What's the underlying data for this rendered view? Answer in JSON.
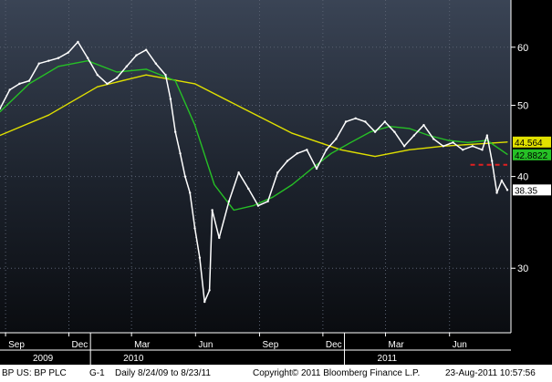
{
  "chart_data": {
    "type": "line",
    "title": "",
    "xlabel": "",
    "ylabel": "",
    "scale": "log",
    "ylim": [
      25,
      68
    ],
    "y_ticks": [
      "30",
      "40",
      "50",
      "60"
    ],
    "y_tick_values": [
      30,
      40,
      50,
      60
    ],
    "x_ticks": [
      "Sep",
      "Dec",
      "Mar",
      "Jun",
      "Sep",
      "Dec",
      "Mar",
      "Jun"
    ],
    "x_tick_dates": [
      "2009-09-01",
      "2009-12-01",
      "2010-03-01",
      "2010-06-01",
      "2010-09-01",
      "2010-12-01",
      "2011-03-01",
      "2011-06-01"
    ],
    "year_labels": [
      "2009",
      "2010",
      "2011"
    ],
    "year_label_dates": [
      "2009-08-24",
      "2010-01-01",
      "2011-01-01"
    ],
    "x_range": [
      "2009-08-24",
      "2011-08-23"
    ],
    "grid": true,
    "series": [
      {
        "color": "#ffffff",
        "x": [
          "2009-08-24",
          "2009-09-07",
          "2009-09-21",
          "2009-10-05",
          "2009-10-19",
          "2009-11-02",
          "2009-11-16",
          "2009-11-30",
          "2009-12-14",
          "2009-12-28",
          "2010-01-11",
          "2010-01-25",
          "2010-02-08",
          "2010-02-22",
          "2010-03-08",
          "2010-03-22",
          "2010-04-05",
          "2010-04-19",
          "2010-04-26",
          "2010-05-03",
          "2010-05-10",
          "2010-05-17",
          "2010-05-24",
          "2010-05-31",
          "2010-06-07",
          "2010-06-14",
          "2010-06-21",
          "2010-06-25",
          "2010-07-05",
          "2010-07-19",
          "2010-08-02",
          "2010-08-16",
          "2010-08-30",
          "2010-09-13",
          "2010-09-27",
          "2010-10-11",
          "2010-10-25",
          "2010-11-08",
          "2010-11-22",
          "2010-12-06",
          "2010-12-20",
          "2011-01-03",
          "2011-01-17",
          "2011-01-31",
          "2011-02-14",
          "2011-02-28",
          "2011-03-14",
          "2011-03-28",
          "2011-04-11",
          "2011-04-25",
          "2011-05-09",
          "2011-05-23",
          "2011-06-06",
          "2011-06-20",
          "2011-07-04",
          "2011-07-18",
          "2011-07-25",
          "2011-08-01",
          "2011-08-08",
          "2011-08-15",
          "2011-08-23"
        ],
        "values": [
          49.5,
          52.5,
          53.5,
          54.0,
          57.0,
          57.5,
          58.0,
          59.0,
          61.0,
          58.0,
          55.0,
          53.5,
          54.5,
          56.5,
          58.5,
          59.5,
          57.0,
          55.0,
          51.0,
          46.0,
          43.0,
          40.0,
          38.0,
          34.0,
          31.0,
          27.0,
          28.0,
          36.0,
          33.0,
          37.0,
          40.5,
          38.5,
          36.5,
          37.0,
          40.5,
          42.0,
          43.0,
          43.5,
          41.0,
          43.5,
          45.0,
          47.5,
          48.0,
          47.5,
          46.0,
          47.5,
          46.0,
          44.0,
          45.5,
          47.0,
          45.0,
          44.0,
          44.5,
          43.5,
          44.0,
          43.5,
          45.5,
          42.0,
          38.0,
          39.5,
          38.35
        ]
      },
      {
        "color": "#26c026",
        "x": [
          "2009-08-24",
          "2009-10-05",
          "2009-11-16",
          "2009-12-28",
          "2010-02-08",
          "2010-03-22",
          "2010-05-03",
          "2010-05-31",
          "2010-06-28",
          "2010-07-26",
          "2010-08-23",
          "2010-09-20",
          "2010-10-18",
          "2010-11-15",
          "2010-12-13",
          "2011-01-10",
          "2011-02-07",
          "2011-03-07",
          "2011-04-04",
          "2011-05-02",
          "2011-05-30",
          "2011-06-27",
          "2011-07-25",
          "2011-08-23"
        ],
        "values": [
          49.0,
          53.5,
          56.5,
          57.5,
          55.5,
          56.0,
          54.0,
          47.0,
          39.0,
          36.0,
          36.5,
          37.5,
          39.0,
          41.0,
          43.0,
          44.5,
          46.0,
          46.8,
          46.5,
          45.5,
          44.8,
          44.5,
          44.8,
          42.8822
        ]
      },
      {
        "color": "#e0e000",
        "x": [
          "2009-08-24",
          "2009-11-02",
          "2010-01-11",
          "2010-03-22",
          "2010-05-31",
          "2010-08-09",
          "2010-10-18",
          "2010-12-27",
          "2011-02-14",
          "2011-04-04",
          "2011-05-23",
          "2011-07-11",
          "2011-08-23"
        ],
        "values": [
          45.5,
          48.5,
          53.0,
          55.0,
          53.5,
          49.5,
          45.8,
          43.5,
          42.6,
          43.5,
          44.0,
          44.3,
          44.564
        ]
      }
    ],
    "reference_lines": [
      {
        "value": 41.5,
        "color": "#e02020",
        "style": "dashed",
        "x_start": "2011-07-01",
        "x_end": "2011-08-23"
      }
    ],
    "value_tags": [
      {
        "text": "44.564",
        "color": "#e0e000",
        "text_color": "#000000"
      },
      {
        "text": "42.8822",
        "color": "#26c026",
        "text_color": "#000000"
      },
      {
        "text": "38.35",
        "color": "#ffffff",
        "text_color": "#000000"
      }
    ]
  },
  "footer": {
    "ticker": "BP US: BP PLC",
    "chart_code": "G-1",
    "period": "Daily  8/24/09 to 8/23/11",
    "copyright": "Copyright© 2011 Bloomberg Finance L.P.",
    "timestamp": "23-Aug-2011 10:57:56"
  }
}
